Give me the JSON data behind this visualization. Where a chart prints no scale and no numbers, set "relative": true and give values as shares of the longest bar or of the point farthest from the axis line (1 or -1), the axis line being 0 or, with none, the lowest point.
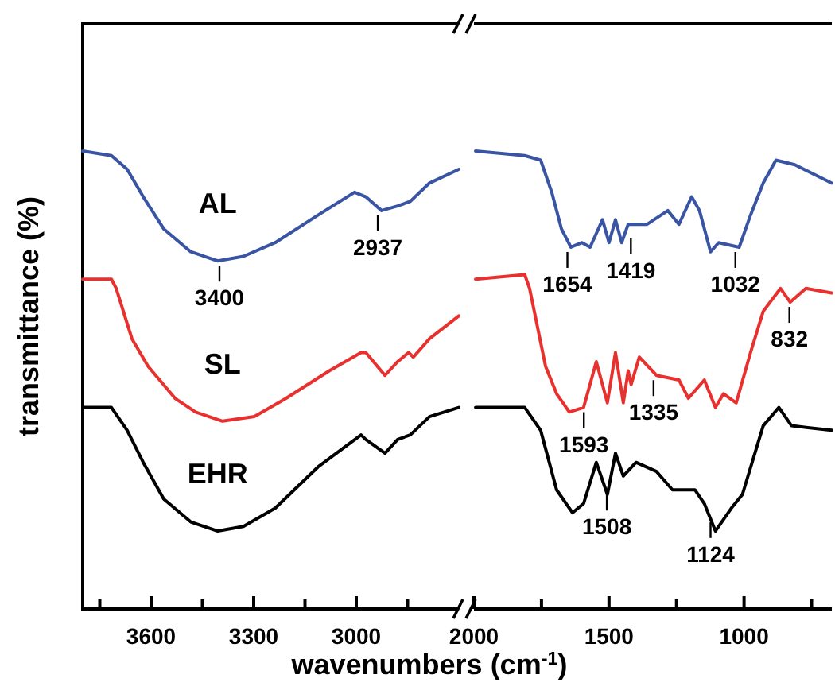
{
  "chart_data": [
    {
      "type": "line",
      "relative": true,
      "ylabel": "transmittance (%)",
      "xlabel": "wavenumbers (cm$^{-1}$)",
      "xlim": [
        3800,
        2700
      ],
      "xticks": [
        {
          "value": 3750,
          "label": null
        },
        3600,
        {
          "value": 3450,
          "label": null
        },
        3300,
        {
          "value": 3150,
          "label": null
        },
        3000,
        {
          "value": 2850,
          "label": null
        }
      ],
      "series": [
        {
          "name": "AL",
          "color": "#3a54a4",
          "x": [
            3800,
            3716,
            3670,
            3623,
            3563,
            3484,
            3405,
            3330,
            3237,
            3112,
            3005,
            2972,
            2926,
            2879,
            2842,
            2786,
            2700
          ],
          "values": [
            1,
            0.99,
            0.96,
            0.9,
            0.83,
            0.78,
            0.76,
            0.77,
            0.8,
            0.86,
            0.91,
            0.9,
            0.87,
            0.88,
            0.89,
            0.93,
            0.96
          ]
        },
        {
          "name": "SL",
          "color": "#e8312e",
          "x": [
            3800,
            3716,
            3702,
            3656,
            3609,
            3530,
            3470,
            3391,
            3298,
            3205,
            3079,
            2986,
            2972,
            2916,
            2879,
            2847,
            2833,
            2786,
            2700
          ],
          "values": [
            0.72,
            0.72,
            0.7,
            0.59,
            0.53,
            0.46,
            0.43,
            0.41,
            0.42,
            0.46,
            0.52,
            0.56,
            0.56,
            0.51,
            0.54,
            0.56,
            0.55,
            0.59,
            0.64
          ]
        },
        {
          "name": "EHR",
          "color": "#000000",
          "x": [
            3800,
            3716,
            3670,
            3623,
            3563,
            3484,
            3405,
            3330,
            3237,
            3112,
            2986,
            2972,
            2916,
            2879,
            2842,
            2786,
            2700
          ],
          "values": [
            0.44,
            0.44,
            0.39,
            0.32,
            0.24,
            0.19,
            0.17,
            0.18,
            0.22,
            0.31,
            0.38,
            0.37,
            0.34,
            0.37,
            0.38,
            0.42,
            0.44
          ]
        }
      ],
      "annotations": [
        {
          "text": "3400",
          "x": 3400,
          "y": 0.76
        },
        {
          "text": "2937",
          "x": 2937,
          "y": 0.87
        }
      ]
    },
    {
      "type": "line",
      "relative": true,
      "xlim": [
        2000,
        675
      ],
      "xticks": [
        2000,
        {
          "value": 1750,
          "label": null
        },
        1500,
        {
          "value": 1250,
          "label": null
        },
        1000,
        {
          "value": 750,
          "label": null
        }
      ],
      "series": [
        {
          "color": "#3a54a4",
          "x": [
            1994,
            1812,
            1753,
            1712,
            1676,
            1641,
            1600,
            1570,
            1524,
            1500,
            1476,
            1453,
            1429,
            1359,
            1282,
            1241,
            1194,
            1165,
            1124,
            1094,
            1018,
            976,
            929,
            882,
            812,
            676
          ],
          "values": [
            1,
            0.99,
            0.98,
            0.91,
            0.83,
            0.79,
            0.8,
            0.79,
            0.85,
            0.8,
            0.85,
            0.8,
            0.84,
            0.84,
            0.87,
            0.84,
            0.9,
            0.87,
            0.78,
            0.8,
            0.79,
            0.86,
            0.93,
            0.98,
            0.97,
            0.93
          ]
        },
        {
          "color": "#e8312e",
          "x": [
            1994,
            1812,
            1794,
            1735,
            1694,
            1647,
            1594,
            1547,
            1506,
            1476,
            1447,
            1429,
            1418,
            1388,
            1324,
            1241,
            1206,
            1147,
            1106,
            1076,
            1029,
            976,
            929,
            865,
            829,
            771,
            676
          ],
          "values": [
            0.72,
            0.73,
            0.7,
            0.53,
            0.47,
            0.43,
            0.44,
            0.54,
            0.45,
            0.56,
            0.45,
            0.52,
            0.49,
            0.55,
            0.51,
            0.5,
            0.46,
            0.5,
            0.44,
            0.47,
            0.45,
            0.56,
            0.65,
            0.7,
            0.67,
            0.7,
            0.69
          ]
        },
        {
          "color": "#000000",
          "x": [
            1994,
            1812,
            1753,
            1694,
            1635,
            1594,
            1547,
            1506,
            1476,
            1447,
            1400,
            1324,
            1265,
            1182,
            1147,
            1106,
            1047,
            1006,
            929,
            871,
            824,
            676
          ],
          "values": [
            0.44,
            0.44,
            0.39,
            0.26,
            0.21,
            0.23,
            0.32,
            0.25,
            0.34,
            0.29,
            0.32,
            0.3,
            0.26,
            0.26,
            0.23,
            0.17,
            0.22,
            0.25,
            0.4,
            0.44,
            0.4,
            0.39
          ]
        }
      ],
      "annotations": [
        {
          "text": "1654",
          "x": 1654,
          "y": 0.79
        },
        {
          "text": "1419",
          "x": 1419,
          "y": 0.82
        },
        {
          "text": "1032",
          "x": 1032,
          "y": 0.79
        },
        {
          "text": "1593",
          "x": 1593,
          "y": 0.44
        },
        {
          "text": "1335",
          "x": 1335,
          "y": 0.51
        },
        {
          "text": "832",
          "x": 832,
          "y": 0.67
        },
        {
          "text": "1508",
          "x": 1508,
          "y": 0.26
        },
        {
          "text": "1124",
          "x": 1124,
          "y": 0.2
        }
      ]
    }
  ]
}
